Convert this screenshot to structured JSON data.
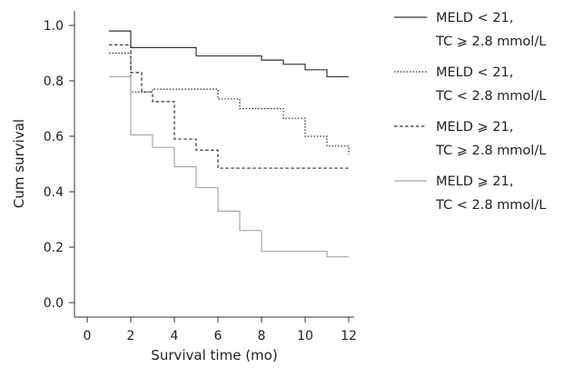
{
  "chart_data": {
    "type": "line",
    "subtype": "step",
    "xlabel": "Survival time (mo)",
    "ylabel": "Cum survival",
    "xlim": [
      0,
      12
    ],
    "ylim": [
      0.0,
      1.0
    ],
    "x_ticks": [
      0,
      2,
      4,
      6,
      8,
      10,
      12
    ],
    "y_ticks": [
      "0.0",
      "0.2",
      "0.4",
      "0.6",
      "0.8",
      "1.0"
    ],
    "grid": false,
    "legend_position": "right",
    "series": [
      {
        "name_lines": [
          "MELD < 21,",
          "TC ⩾ 2.8 mmol/L"
        ],
        "line_style": "solid",
        "color": "#333333",
        "x": [
          1,
          2,
          5,
          8,
          9,
          10,
          11,
          12
        ],
        "y": [
          0.98,
          0.92,
          0.89,
          0.875,
          0.86,
          0.84,
          0.815,
          0.815
        ]
      },
      {
        "name_lines": [
          "MELD < 21,",
          "TC < 2.8 mmol/L"
        ],
        "line_style": "dotted",
        "color": "#333333",
        "x": [
          1,
          2,
          3,
          6,
          7,
          9,
          10,
          11,
          12
        ],
        "y": [
          0.9,
          0.76,
          0.77,
          0.735,
          0.7,
          0.665,
          0.6,
          0.565,
          0.535
        ]
      },
      {
        "name_lines": [
          "MELD ⩾ 21,",
          "TC ⩾ 2.8 mmol/L"
        ],
        "line_style": "dashed",
        "color": "#333333",
        "x": [
          1,
          2,
          2.5,
          3,
          4,
          5,
          6,
          12
        ],
        "y": [
          0.93,
          0.83,
          0.76,
          0.725,
          0.59,
          0.55,
          0.485,
          0.485
        ]
      },
      {
        "name_lines": [
          "MELD ⩾ 21,",
          "TC < 2.8 mmol/L"
        ],
        "line_style": "solid",
        "color": "#a8a8a8",
        "x": [
          1,
          2,
          3,
          4,
          5,
          6,
          7,
          8,
          11,
          12
        ],
        "y": [
          0.815,
          0.605,
          0.56,
          0.49,
          0.415,
          0.33,
          0.26,
          0.185,
          0.165,
          0.165
        ]
      }
    ]
  }
}
